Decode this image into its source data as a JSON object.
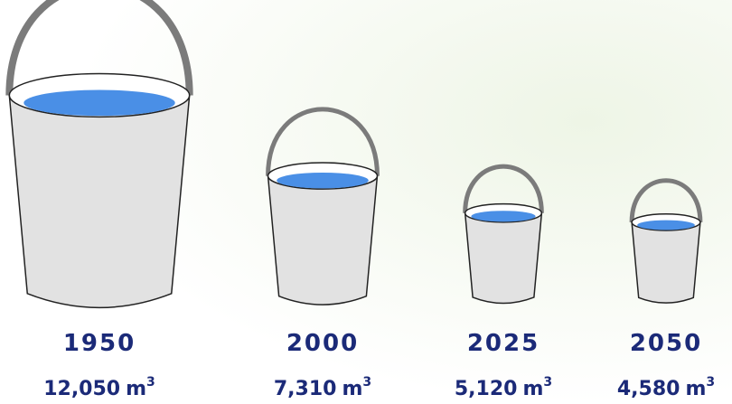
{
  "chart_data": {
    "type": "bucket",
    "categories": [
      "1950",
      "2000",
      "2025",
      "2050"
    ],
    "values": [
      12050,
      7310,
      5120,
      4580
    ],
    "value_labels": [
      "12,050",
      "7,310",
      "5,120",
      "4,580"
    ],
    "unit": "m",
    "unit_exponent": "3",
    "color": "#4a8fe6"
  }
}
